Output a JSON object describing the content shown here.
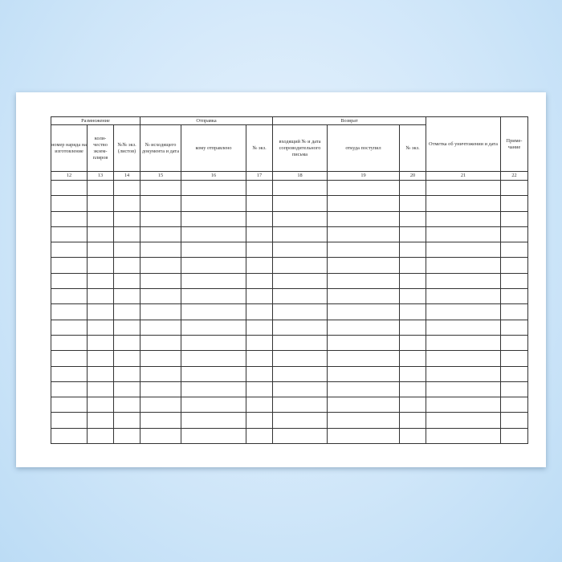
{
  "groups": {
    "reproduction": "Размножение",
    "dispatch": "Отправка",
    "return": "Возврат"
  },
  "columns": [
    {
      "num": "12",
      "label": "номер наряда на изготовление"
    },
    {
      "num": "13",
      "label": "коли-чество экзем-пляров"
    },
    {
      "num": "14",
      "label": "№№ экз. (листов)"
    },
    {
      "num": "15",
      "label": "№ исходящего документа и дата"
    },
    {
      "num": "16",
      "label": "кому отправлено"
    },
    {
      "num": "17",
      "label": "№ экз."
    },
    {
      "num": "18",
      "label": "входящий № и дата сопроводительного письма"
    },
    {
      "num": "19",
      "label": "откуда поступил"
    },
    {
      "num": "20",
      "label": "№ экз."
    },
    {
      "num": "21",
      "label": "Отметка об уничтожении и дата"
    },
    {
      "num": "22",
      "label": "Приме-чание"
    }
  ],
  "body_row_count": 17
}
